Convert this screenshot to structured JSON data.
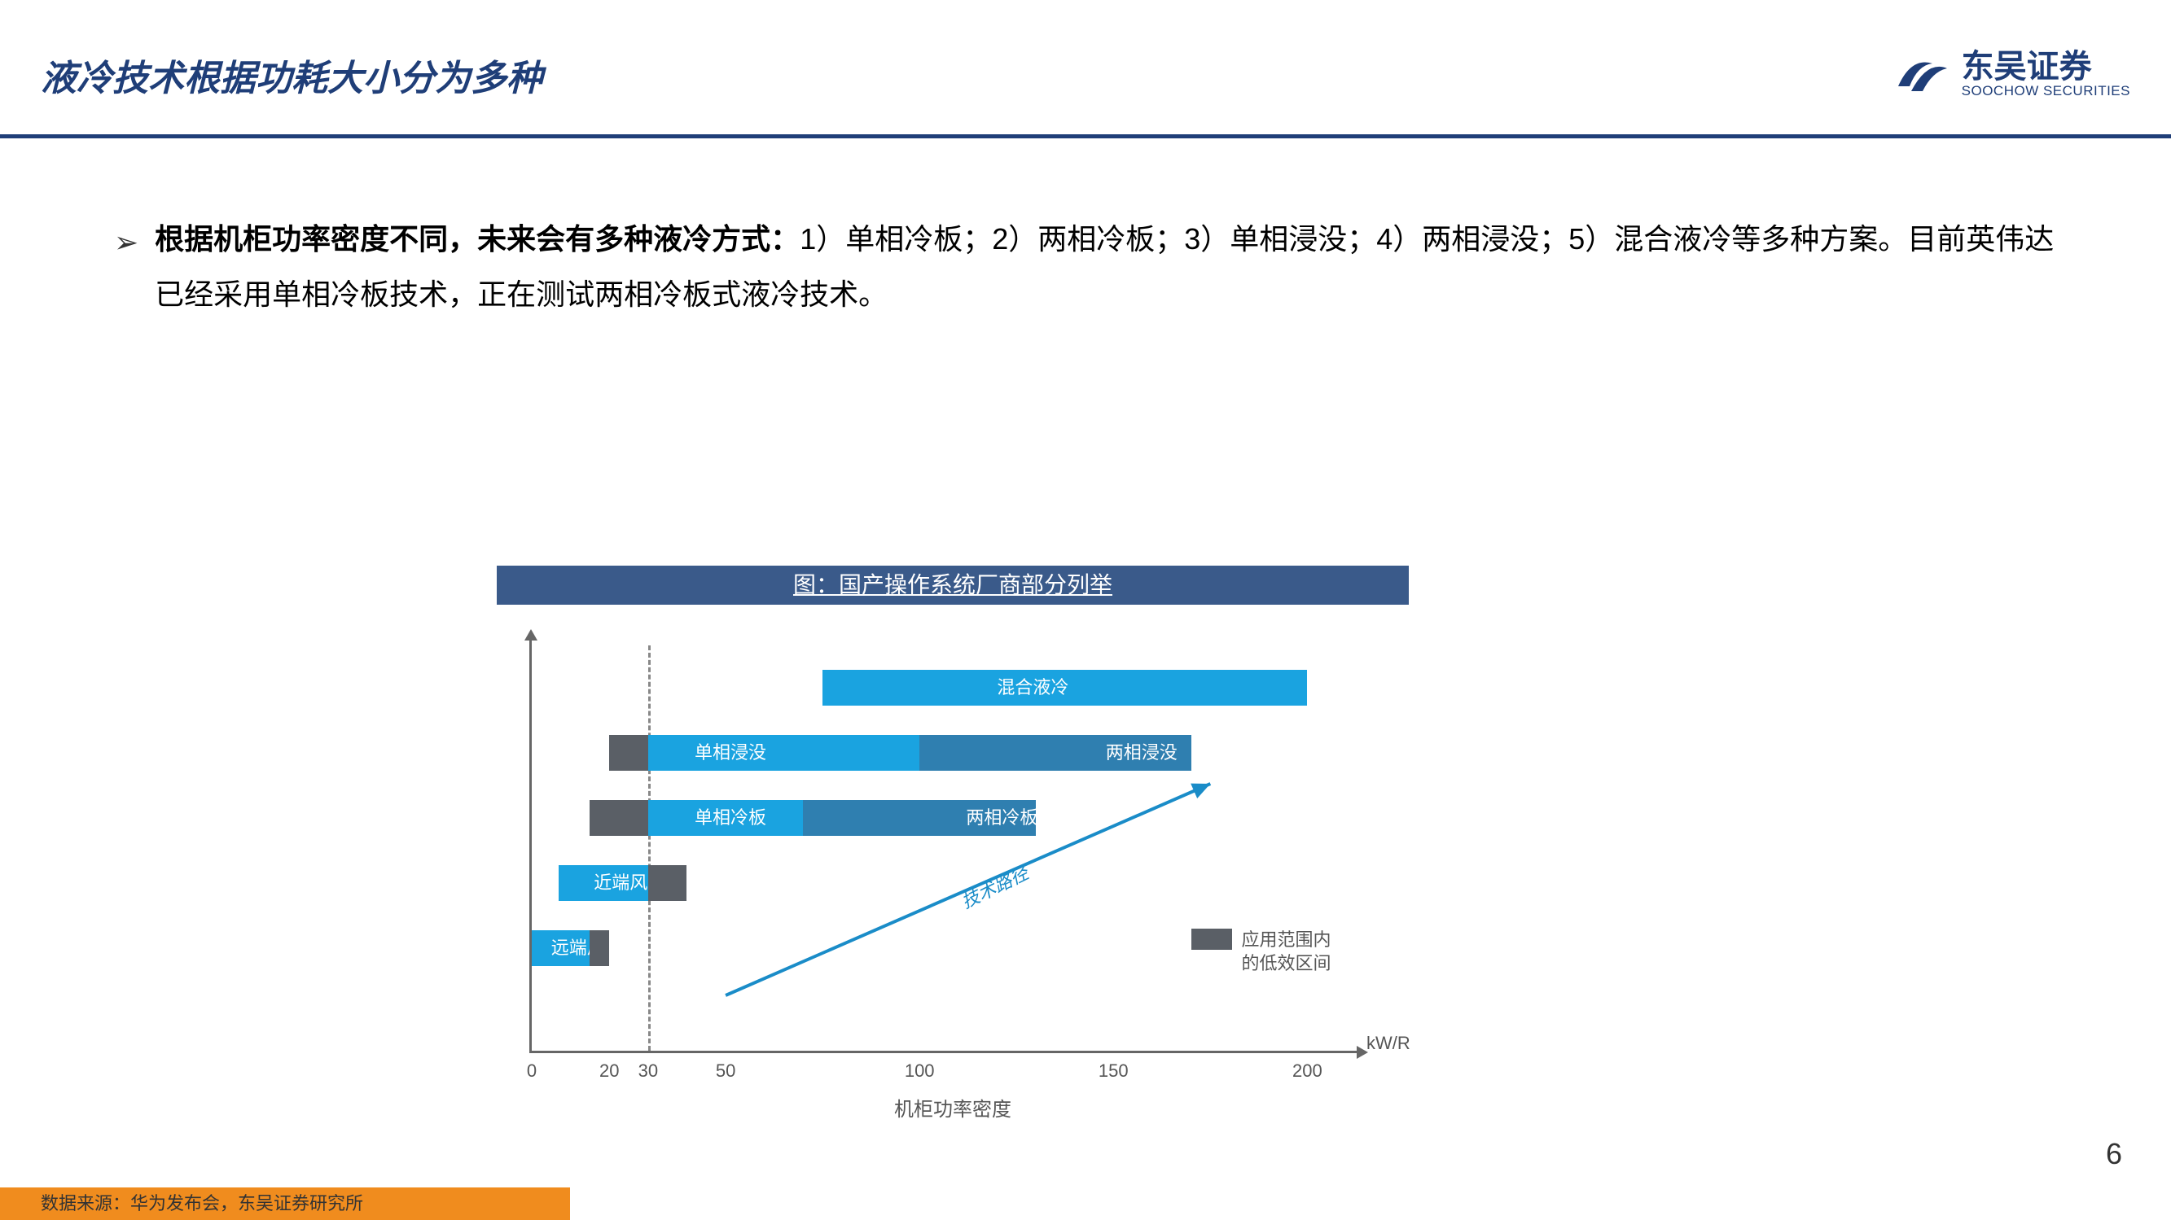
{
  "header": {
    "title": "液冷技术根据功耗大小分为多种",
    "logo_cn": "东吴证券",
    "logo_en": "SOOCHOW SECURITIES",
    "logo_color": "#1f3e78"
  },
  "body": {
    "bullet_marker": "➢",
    "text_bold": "根据机柜功率密度不同，未来会有多种液冷方式：",
    "text_rest": "1）单相冷板；2）两相冷板；3）单相浸没；4）两相浸没；5）混合液冷等多种方案。目前英伟达已经采用单相冷板技术，正在测试两相冷板式液冷技术。"
  },
  "chart": {
    "title": "图：国产操作系统厂商部分列举",
    "title_bg": "#3a5a8a",
    "x_caption": "机柜功率密度",
    "x_unit": "kW/R",
    "x_range": [
      0,
      210
    ],
    "x_ticks": [
      0,
      20,
      30,
      50,
      100,
      150,
      200
    ],
    "dashed_at": 30,
    "trend_label": "技术路径",
    "trend_color": "#1a8cc8",
    "legend": {
      "swatch_color": "#5a5f66",
      "text": "应用范围内\n的低效区间"
    },
    "colors": {
      "bright_blue": "#1aa3e0",
      "mid_blue": "#2f7fb0",
      "dark_gray": "#5a5f66"
    },
    "rows": [
      {
        "y": 60,
        "segments": [
          {
            "x0": 75,
            "x1": 200,
            "color": "#1aa3e0",
            "label": "混合液冷",
            "label_x": 120
          }
        ]
      },
      {
        "y": 140,
        "segments": [
          {
            "x0": 20,
            "x1": 30,
            "color": "#5a5f66"
          },
          {
            "x0": 30,
            "x1": 100,
            "color": "#1aa3e0",
            "label": "单相浸没",
            "label_x": 42
          },
          {
            "x0": 100,
            "x1": 170,
            "color": "#2f7fb0",
            "label": "两相浸没",
            "label_x": 148
          }
        ]
      },
      {
        "y": 220,
        "segments": [
          {
            "x0": 15,
            "x1": 30,
            "color": "#5a5f66"
          },
          {
            "x0": 30,
            "x1": 70,
            "color": "#1aa3e0",
            "label": "单相冷板",
            "label_x": 42
          },
          {
            "x0": 70,
            "x1": 130,
            "color": "#2f7fb0",
            "label": "两相冷板",
            "label_x": 112
          }
        ]
      },
      {
        "y": 300,
        "segments": [
          {
            "x0": 7,
            "x1": 30,
            "color": "#1aa3e0",
            "label": "近端风冷",
            "label_x": 16
          },
          {
            "x0": 30,
            "x1": 40,
            "color": "#5a5f66"
          }
        ]
      },
      {
        "y": 380,
        "segments": [
          {
            "x0": 0,
            "x1": 15,
            "color": "#1aa3e0",
            "label": "远端风冷",
            "label_x": 5
          },
          {
            "x0": 15,
            "x1": 20,
            "color": "#5a5f66"
          }
        ]
      }
    ]
  },
  "page_number": "6",
  "footer": "数据来源：华为发布会，东吴证券研究所"
}
